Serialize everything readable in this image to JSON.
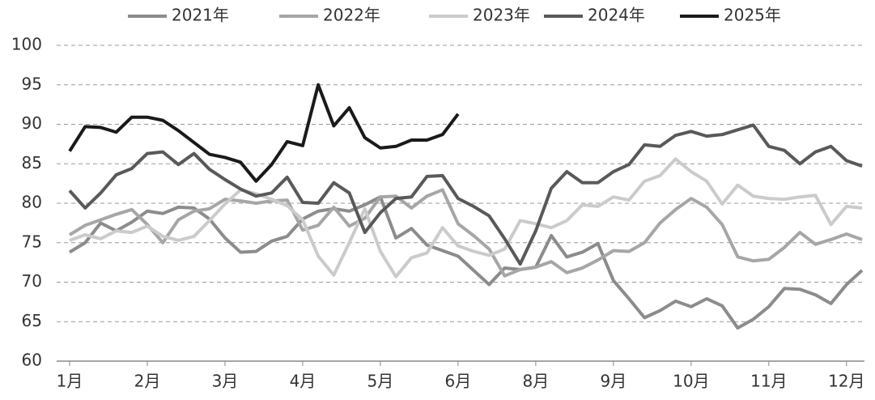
{
  "chart_data": {
    "type": "line",
    "categories": [
      "1月",
      null,
      null,
      null,
      null,
      "2月",
      null,
      null,
      null,
      null,
      "3月",
      null,
      null,
      null,
      null,
      "4月",
      null,
      null,
      null,
      null,
      "5月",
      null,
      null,
      null,
      null,
      "6月",
      null,
      null,
      null,
      null,
      "8月",
      null,
      null,
      null,
      null,
      "9月",
      null,
      null,
      null,
      null,
      "10月",
      null,
      null,
      null,
      null,
      "11月",
      null,
      null,
      null,
      null,
      "12月",
      null
    ],
    "series": [
      {
        "name": "2021年",
        "color": "#8c8c8c",
        "values": [
          73.8,
          75.0,
          77.5,
          76.5,
          77.6,
          79.0,
          78.7,
          79.5,
          79.4,
          78.0,
          75.6,
          73.8,
          73.9,
          75.2,
          75.8,
          78.0,
          79.0,
          79.3,
          79.0,
          79.8,
          80.8,
          75.6,
          76.8,
          74.7,
          74.0,
          73.3,
          71.5,
          69.7,
          71.8,
          71.6,
          71.9,
          75.9,
          73.2,
          73.8,
          74.9,
          70.2,
          67.9,
          65.5,
          66.4,
          67.6,
          66.9,
          67.9,
          67.0,
          64.2,
          65.3,
          66.9,
          69.2,
          69.1,
          68.4,
          67.3,
          69.7,
          71.5
        ]
      },
      {
        "name": "2022年",
        "color": "#a6a6a6",
        "values": [
          76.0,
          77.2,
          77.9,
          78.6,
          79.2,
          77.3,
          75.0,
          77.9,
          79.0,
          79.3,
          80.5,
          80.3,
          80.0,
          80.3,
          80.4,
          76.6,
          77.2,
          79.5,
          77.1,
          78.1,
          80.8,
          80.9,
          79.4,
          80.9,
          81.7,
          77.4,
          75.9,
          74.2,
          70.8,
          71.6,
          71.9,
          72.6,
          71.2,
          71.8,
          72.8,
          74.0,
          73.9,
          75.0,
          77.5,
          79.2,
          80.6,
          79.5,
          77.3,
          73.2,
          72.7,
          72.9,
          74.4,
          76.3,
          74.8,
          75.4,
          76.1,
          75.4
        ]
      },
      {
        "name": "2023年",
        "color": "#cbcbcb",
        "values": [
          75.3,
          76.0,
          75.5,
          76.5,
          76.3,
          77.1,
          75.8,
          75.3,
          75.8,
          77.8,
          79.9,
          81.7,
          81.2,
          80.5,
          79.7,
          77.9,
          73.3,
          70.9,
          75.0,
          79.3,
          73.9,
          70.7,
          73.1,
          73.7,
          76.9,
          74.6,
          73.9,
          73.4,
          74.2,
          77.8,
          77.4,
          76.9,
          77.8,
          79.8,
          79.6,
          80.8,
          80.4,
          82.8,
          83.5,
          85.6,
          84.0,
          82.8,
          79.9,
          82.3,
          80.9,
          80.6,
          80.5,
          80.8,
          81.0,
          77.3,
          79.6,
          79.4
        ]
      },
      {
        "name": "2024年",
        "color": "#595959",
        "values": [
          81.6,
          79.4,
          81.3,
          83.6,
          84.4,
          86.3,
          86.5,
          84.9,
          86.3,
          84.3,
          83.0,
          81.8,
          80.9,
          81.3,
          83.3,
          80.1,
          80.0,
          82.6,
          81.3,
          76.3,
          78.8,
          80.6,
          80.8,
          83.4,
          83.5,
          80.6,
          79.6,
          78.4,
          75.5,
          72.3,
          76.5,
          81.9,
          84.0,
          82.6,
          82.6,
          84.0,
          84.9,
          87.4,
          87.2,
          88.6,
          89.1,
          88.5,
          88.7,
          89.3,
          89.9,
          87.2,
          86.7,
          85.0,
          86.5,
          87.2,
          85.4,
          84.7
        ]
      },
      {
        "name": "2025年",
        "color": "#1a1a1a",
        "values": [
          86.6,
          89.7,
          89.6,
          89.0,
          90.9,
          90.9,
          90.5,
          89.2,
          87.7,
          86.2,
          85.8,
          85.2,
          82.8,
          84.9,
          87.8,
          87.3,
          95.0,
          89.8,
          92.1,
          88.3,
          87.0,
          87.2,
          88.0,
          88.0,
          88.7,
          91.3,
          null,
          null,
          null,
          null,
          null,
          null,
          null,
          null,
          null,
          null,
          null,
          null,
          null,
          null,
          null,
          null,
          null,
          null,
          null,
          null,
          null,
          null,
          null,
          null,
          null,
          null
        ]
      }
    ],
    "ylim": [
      60,
      100
    ],
    "yticks": [
      60,
      65,
      70,
      75,
      80,
      85,
      90,
      95,
      100
    ],
    "grid": true,
    "legend": "top"
  }
}
